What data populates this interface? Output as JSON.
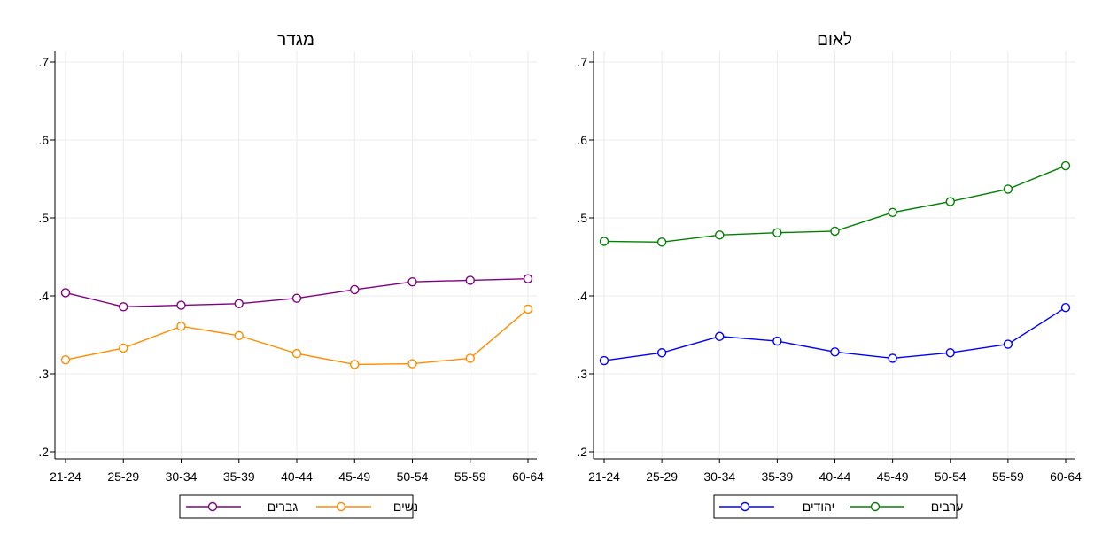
{
  "chart_data": [
    {
      "type": "line",
      "title": "מגדר",
      "categories": [
        "21-24",
        "25-29",
        "30-34",
        "35-39",
        "40-44",
        "45-49",
        "50-54",
        "55-59",
        "60-64"
      ],
      "ylim": [
        0.2,
        0.7
      ],
      "yticks": [
        ".2",
        ".3",
        ".4",
        ".5",
        ".6",
        ".7"
      ],
      "ytick_values": [
        0.2,
        0.3,
        0.4,
        0.5,
        0.6,
        0.7
      ],
      "grid": true,
      "legend_position": "bottom",
      "series": [
        {
          "name": "גברים",
          "color": "#800080",
          "values": [
            0.404,
            0.386,
            0.388,
            0.39,
            0.397,
            0.408,
            0.418,
            0.42,
            0.422
          ]
        },
        {
          "name": "נשים",
          "color": "#ff8c00",
          "values": [
            0.318,
            0.333,
            0.361,
            0.349,
            0.326,
            0.312,
            0.313,
            0.32,
            0.383
          ]
        }
      ]
    },
    {
      "type": "line",
      "title": "לאום",
      "categories": [
        "21-24",
        "25-29",
        "30-34",
        "35-39",
        "40-44",
        "45-49",
        "50-54",
        "55-59",
        "60-64"
      ],
      "ylim": [
        0.2,
        0.7
      ],
      "yticks": [
        ".2",
        ".3",
        ".4",
        ".5",
        ".6",
        ".7"
      ],
      "ytick_values": [
        0.2,
        0.3,
        0.4,
        0.5,
        0.6,
        0.7
      ],
      "grid": true,
      "legend_position": "bottom",
      "series": [
        {
          "name": "יהודים",
          "color": "#0000ff",
          "values": [
            0.317,
            0.327,
            0.348,
            0.342,
            0.328,
            0.32,
            0.327,
            0.338,
            0.385
          ]
        },
        {
          "name": "ערבים",
          "color": "#008000",
          "values": [
            0.47,
            0.469,
            0.478,
            0.481,
            0.483,
            0.507,
            0.521,
            0.537,
            0.567
          ]
        }
      ]
    }
  ]
}
